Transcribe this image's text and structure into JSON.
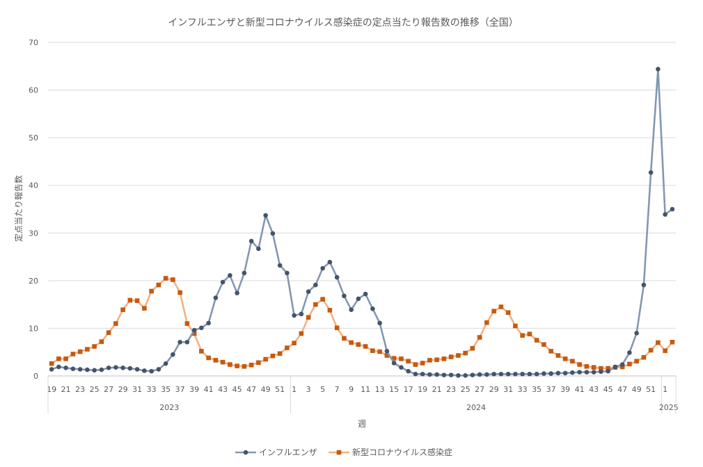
{
  "chart_data": {
    "type": "line",
    "title": "インフルエンザと新型コロナウイルス感染症の定点当たり報告数の推移（全国）",
    "xlabel": "週",
    "ylabel": "定点当たり報告数",
    "ylim": [
      0,
      70
    ],
    "yticks": [
      0,
      10,
      20,
      30,
      40,
      50,
      60,
      70
    ],
    "grid": true,
    "legend_position": "bottom",
    "weeks": [
      19,
      20,
      21,
      22,
      23,
      24,
      25,
      26,
      27,
      28,
      29,
      30,
      31,
      32,
      33,
      34,
      35,
      36,
      37,
      38,
      39,
      40,
      41,
      42,
      43,
      44,
      45,
      46,
      47,
      48,
      49,
      50,
      51,
      52,
      1,
      2,
      3,
      4,
      5,
      6,
      7,
      8,
      9,
      10,
      11,
      12,
      13,
      14,
      15,
      16,
      17,
      18,
      19,
      20,
      21,
      22,
      23,
      24,
      25,
      26,
      27,
      28,
      29,
      30,
      31,
      32,
      33,
      34,
      35,
      36,
      37,
      38,
      39,
      40,
      41,
      42,
      43,
      44,
      45,
      46,
      47,
      48,
      49,
      50,
      51,
      52,
      1,
      2
    ],
    "year_groups": [
      {
        "label": "2023",
        "count": 34
      },
      {
        "label": "2024",
        "count": 52
      },
      {
        "label": "2025",
        "count": 2
      }
    ],
    "series": [
      {
        "name": "インフルエンザ",
        "color": "#44546a",
        "line_color": "#8497b0",
        "marker": "circle",
        "values": [
          1.4,
          1.9,
          1.7,
          1.5,
          1.4,
          1.3,
          1.2,
          1.3,
          1.7,
          1.8,
          1.7,
          1.6,
          1.4,
          1.1,
          1.0,
          1.4,
          2.6,
          4.5,
          7.1,
          7.1,
          9.6,
          10.1,
          11.1,
          16.4,
          19.7,
          21.1,
          17.4,
          21.6,
          28.3,
          26.7,
          33.7,
          29.9,
          23.2,
          21.6,
          12.7,
          13.0,
          17.7,
          19.1,
          22.6,
          23.9,
          20.7,
          16.8,
          13.9,
          16.2,
          17.2,
          14.1,
          11.1,
          5.2,
          2.7,
          1.8,
          1.0,
          0.4,
          0.4,
          0.3,
          0.3,
          0.2,
          0.2,
          0.1,
          0.1,
          0.2,
          0.3,
          0.3,
          0.4,
          0.4,
          0.4,
          0.4,
          0.4,
          0.4,
          0.4,
          0.5,
          0.5,
          0.6,
          0.6,
          0.7,
          0.8,
          0.8,
          0.8,
          0.9,
          1.0,
          1.9,
          2.4,
          4.9,
          9.0,
          19.1,
          42.7,
          64.4,
          33.9,
          35.0
        ]
      },
      {
        "name": "新型コロナウイルス感染症",
        "color": "#c55a11",
        "line_color": "#f4b183",
        "marker": "square",
        "values": [
          2.6,
          3.6,
          3.6,
          4.6,
          5.1,
          5.6,
          6.2,
          7.2,
          9.1,
          11.0,
          13.9,
          15.9,
          15.8,
          14.2,
          17.8,
          19.1,
          20.5,
          20.2,
          17.5,
          11.0,
          8.9,
          5.2,
          3.8,
          3.3,
          2.9,
          2.4,
          2.1,
          2.0,
          2.3,
          2.8,
          3.5,
          4.2,
          4.7,
          5.9,
          6.9,
          8.9,
          12.3,
          15.0,
          16.1,
          13.8,
          10.1,
          7.9,
          7.0,
          6.6,
          6.2,
          5.3,
          5.1,
          4.3,
          3.7,
          3.6,
          3.1,
          2.4,
          2.7,
          3.3,
          3.4,
          3.6,
          4.0,
          4.3,
          4.8,
          5.8,
          8.1,
          11.2,
          13.6,
          14.5,
          13.3,
          10.5,
          8.5,
          8.8,
          7.5,
          6.6,
          5.2,
          4.3,
          3.6,
          3.1,
          2.4,
          2.0,
          1.8,
          1.6,
          1.6,
          1.8,
          1.9,
          2.5,
          3.1,
          3.9,
          5.4,
          7.0,
          5.3,
          7.1
        ]
      }
    ]
  }
}
